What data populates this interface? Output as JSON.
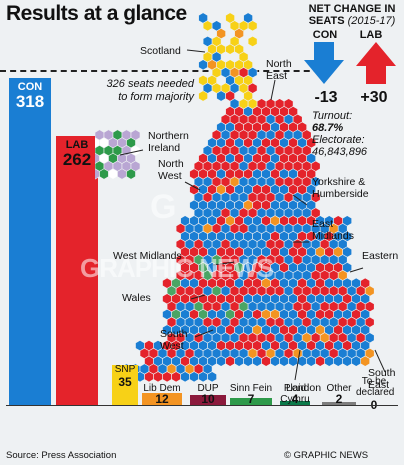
{
  "title": "Results at a glance",
  "majority_note": "326 seats needed to form majority",
  "net_change": {
    "title": "NET CHANGE IN SEATS",
    "years": "(2015-17)",
    "con_label": "CON",
    "lab_label": "LAB",
    "con_change": "-13",
    "lab_change": "+30",
    "con_color": "#1a7ed3",
    "lab_color": "#e4232b"
  },
  "stats": {
    "turnout_label": "Turnout:",
    "turnout_value": "68.7%",
    "electorate_label": "Electorate:",
    "electorate_value": "46,843,896"
  },
  "regions": {
    "scotland": "Scotland",
    "north_east": "North East",
    "northern_ireland": "Northern Ireland",
    "north_west": "North West",
    "yorkshire": "Yorkshire & Humberside",
    "east_midlands": "East Midlands",
    "west_midlands": "West Midlands",
    "eastern": "Eastern",
    "wales": "Wales",
    "south_west": "South West",
    "london": "London",
    "south_east": "South East"
  },
  "source": "Source: Press Association",
  "credit": "© GRAPHIC NEWS",
  "watermark": "GRAPHIC NEWS",
  "chart_data": {
    "type": "bar",
    "categories": [
      "CON",
      "LAB",
      "SNP",
      "Lib Dem",
      "DUP",
      "Sinn Fein",
      "Plaid Cymru",
      "Other",
      "To be declared"
    ],
    "values": [
      318,
      262,
      35,
      12,
      10,
      7,
      4,
      2,
      0
    ],
    "colors": [
      "#1a7ed3",
      "#e4232b",
      "#f7d117",
      "#f39422",
      "#8b1a3c",
      "#2e9a4a",
      "#0b7a4a",
      "#7d7d7d",
      "#333333"
    ],
    "reference_line": {
      "value": 326,
      "label": "326 seats needed to form majority"
    }
  }
}
